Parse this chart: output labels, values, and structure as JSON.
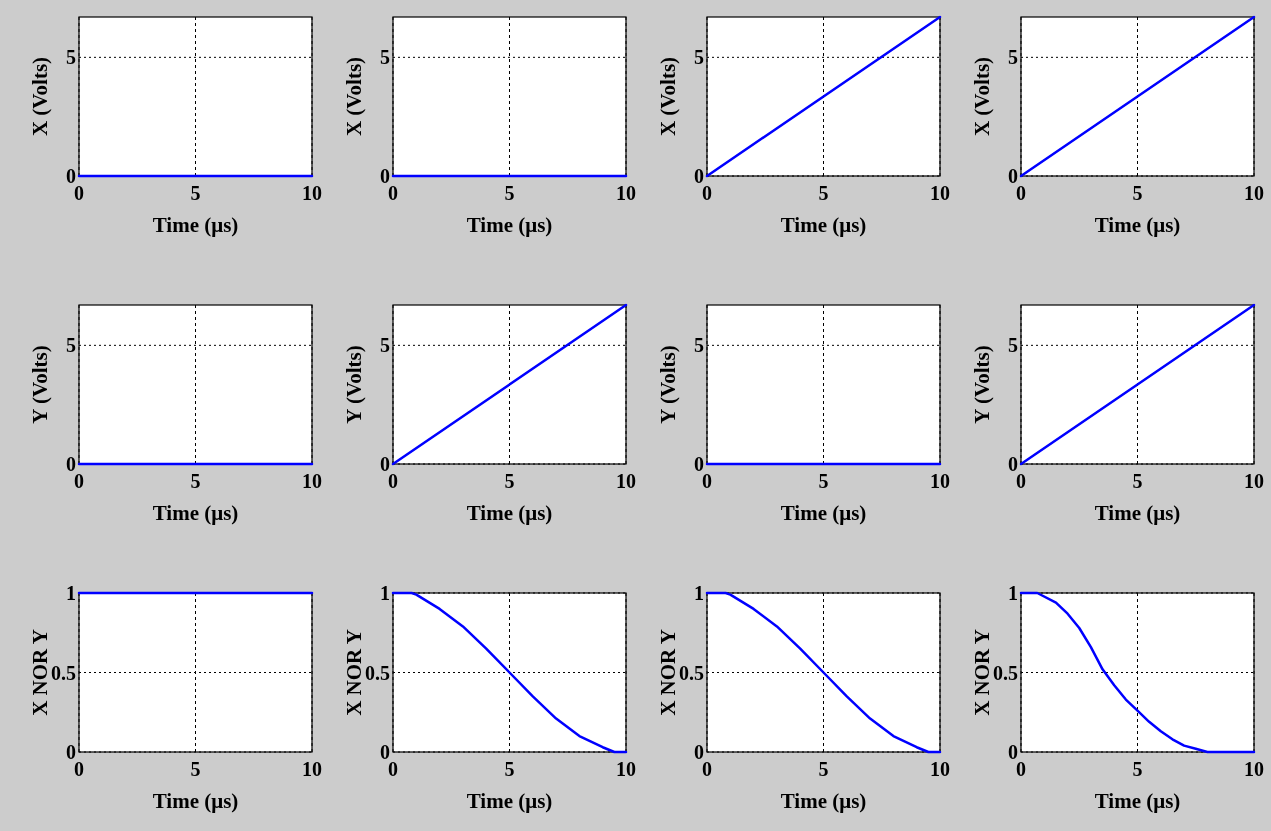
{
  "chart_data": [
    {
      "type": "line",
      "x": [
        0,
        10
      ],
      "values": [
        0,
        0
      ],
      "color": "#0000ff",
      "xlabel": "Time (μs)",
      "ylabel": "X (Volts)",
      "xlim": [
        0,
        10
      ],
      "xticks": [
        0,
        5,
        10
      ],
      "ylim": [
        0,
        6.7
      ],
      "yticks": [
        0,
        5
      ],
      "grid": true
    },
    {
      "type": "line",
      "x": [
        0,
        10
      ],
      "values": [
        0,
        0
      ],
      "color": "#0000ff",
      "xlabel": "Time (μs)",
      "ylabel": "X (Volts)",
      "xlim": [
        0,
        10
      ],
      "xticks": [
        0,
        5,
        10
      ],
      "ylim": [
        0,
        6.7
      ],
      "yticks": [
        0,
        5
      ],
      "grid": true
    },
    {
      "type": "line",
      "x": [
        0,
        10
      ],
      "values": [
        0,
        6.7
      ],
      "color": "#0000ff",
      "xlabel": "Time (μs)",
      "ylabel": "X (Volts)",
      "xlim": [
        0,
        10
      ],
      "xticks": [
        0,
        5,
        10
      ],
      "ylim": [
        0,
        6.7
      ],
      "yticks": [
        0,
        5
      ],
      "grid": true
    },
    {
      "type": "line",
      "x": [
        0,
        10
      ],
      "values": [
        0,
        6.7
      ],
      "color": "#0000ff",
      "xlabel": "Time (μs)",
      "ylabel": "X (Volts)",
      "xlim": [
        0,
        10
      ],
      "xticks": [
        0,
        5,
        10
      ],
      "ylim": [
        0,
        6.7
      ],
      "yticks": [
        0,
        5
      ],
      "grid": true
    },
    {
      "type": "line",
      "x": [
        0,
        10
      ],
      "values": [
        0,
        0
      ],
      "color": "#0000ff",
      "xlabel": "Time (μs)",
      "ylabel": "Y (Volts)",
      "xlim": [
        0,
        10
      ],
      "xticks": [
        0,
        5,
        10
      ],
      "ylim": [
        0,
        6.7
      ],
      "yticks": [
        0,
        5
      ],
      "grid": true
    },
    {
      "type": "line",
      "x": [
        0,
        10
      ],
      "values": [
        0,
        6.7
      ],
      "color": "#0000ff",
      "xlabel": "Time (μs)",
      "ylabel": "Y (Volts)",
      "xlim": [
        0,
        10
      ],
      "xticks": [
        0,
        5,
        10
      ],
      "ylim": [
        0,
        6.7
      ],
      "yticks": [
        0,
        5
      ],
      "grid": true
    },
    {
      "type": "line",
      "x": [
        0,
        10
      ],
      "values": [
        0,
        0
      ],
      "color": "#0000ff",
      "xlabel": "Time (μs)",
      "ylabel": "Y (Volts)",
      "xlim": [
        0,
        10
      ],
      "xticks": [
        0,
        5,
        10
      ],
      "ylim": [
        0,
        6.7
      ],
      "yticks": [
        0,
        5
      ],
      "grid": true
    },
    {
      "type": "line",
      "x": [
        0,
        10
      ],
      "values": [
        0,
        6.7
      ],
      "color": "#0000ff",
      "xlabel": "Time (μs)",
      "ylabel": "Y (Volts)",
      "xlim": [
        0,
        10
      ],
      "xticks": [
        0,
        5,
        10
      ],
      "ylim": [
        0,
        6.7
      ],
      "yticks": [
        0,
        5
      ],
      "grid": true
    },
    {
      "type": "line",
      "x": [
        0,
        10
      ],
      "values": [
        1,
        1
      ],
      "color": "#0000ff",
      "xlabel": "Time (μs)",
      "ylabel": "X NOR Y",
      "xlim": [
        0,
        10
      ],
      "xticks": [
        0,
        5,
        10
      ],
      "ylim": [
        0,
        1
      ],
      "yticks": [
        0,
        0.5,
        1
      ],
      "grid": true
    },
    {
      "type": "line",
      "x": [
        0,
        0.8,
        1,
        2,
        3,
        4,
        5,
        6,
        7,
        8,
        9,
        9.5,
        10
      ],
      "values": [
        1,
        1,
        0.99,
        0.9,
        0.79,
        0.65,
        0.5,
        0.35,
        0.21,
        0.1,
        0.03,
        0,
        0
      ],
      "color": "#0000ff",
      "xlabel": "Time (μs)",
      "ylabel": "X NOR Y",
      "xlim": [
        0,
        10
      ],
      "xticks": [
        0,
        5,
        10
      ],
      "ylim": [
        0,
        1
      ],
      "yticks": [
        0,
        0.5,
        1
      ],
      "grid": true
    },
    {
      "type": "line",
      "x": [
        0,
        0.8,
        1,
        2,
        3,
        4,
        5,
        6,
        7,
        8,
        9,
        9.5,
        10
      ],
      "values": [
        1,
        1,
        0.99,
        0.9,
        0.79,
        0.65,
        0.5,
        0.35,
        0.21,
        0.1,
        0.03,
        0,
        0
      ],
      "color": "#0000ff",
      "xlabel": "Time (μs)",
      "ylabel": "X NOR Y",
      "xlim": [
        0,
        10
      ],
      "xticks": [
        0,
        5,
        10
      ],
      "ylim": [
        0,
        1
      ],
      "yticks": [
        0,
        0.5,
        1
      ],
      "grid": true
    },
    {
      "type": "line",
      "x": [
        0,
        0.7,
        1.5,
        2,
        2.5,
        3,
        3.5,
        4,
        4.5,
        5,
        5.5,
        6,
        6.5,
        7,
        7.5,
        8,
        10
      ],
      "values": [
        1,
        1,
        0.94,
        0.87,
        0.78,
        0.66,
        0.52,
        0.42,
        0.33,
        0.26,
        0.19,
        0.13,
        0.08,
        0.04,
        0.02,
        0,
        0
      ],
      "color": "#0000ff",
      "xlabel": "Time (μs)",
      "ylabel": "X NOR Y",
      "xlim": [
        0,
        10
      ],
      "xticks": [
        0,
        5,
        10
      ],
      "ylim": [
        0,
        1
      ],
      "yticks": [
        0,
        0.5,
        1
      ],
      "grid": true
    }
  ]
}
